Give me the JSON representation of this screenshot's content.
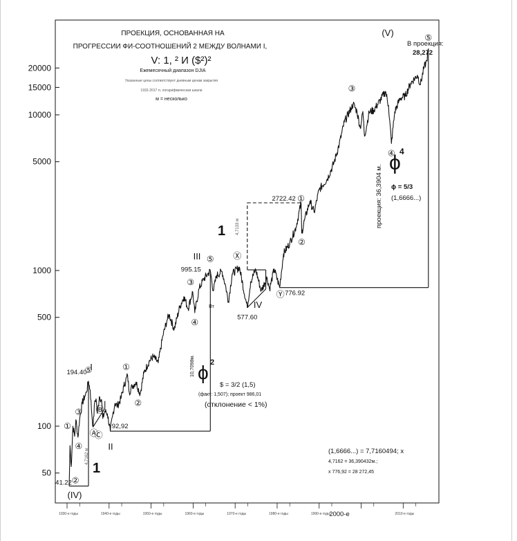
{
  "chart_data": {
    "type": "line",
    "scale": "log",
    "title_lines": [
      "ПРОЕКЦИЯ, ОСНОВАННАЯ НА",
      "ПРОГРЕССИИ ФИ-СООТНОШЕНИЙ 2 МЕЖДУ ВОЛНАМИ I,"
    ],
    "title_formula": "V: 1, ² И ($²)²",
    "subtitle": "Ежемесячный диапазон DJIA",
    "note_prices": "Указанные цены соответствуют дневным ценам закрытия",
    "note_scale": "1932-2017 гг, логарифмическая шкала",
    "note_m": "м = несколько",
    "ylim": [
      40,
      30000
    ],
    "y_ticks": [
      {
        "value": 50,
        "label": "50"
      },
      {
        "value": 100,
        "label": "100"
      },
      {
        "value": 500,
        "label": "500"
      },
      {
        "value": 1000,
        "label": "1000"
      },
      {
        "value": 5000,
        "label": "5000"
      },
      {
        "value": 10000,
        "label": "10000"
      },
      {
        "value": 15000,
        "label": "15000"
      },
      {
        "value": 20000,
        "label": "20000"
      }
    ],
    "x_ticks": [
      {
        "year": 1932,
        "label": "1930-е годы"
      },
      {
        "year": 1942,
        "label": "1940-е годы"
      },
      {
        "year": 1952,
        "label": "1950-е годы"
      },
      {
        "year": 1962,
        "label": "1960-е годы"
      },
      {
        "year": 1972,
        "label": "1970-е годы"
      },
      {
        "year": 1982,
        "label": "1980-е годы"
      },
      {
        "year": 1992,
        "label": "1990-е годы"
      },
      {
        "year": 2002,
        "label": "2000-е"
      },
      {
        "year": 2012,
        "label": "2010-е годы"
      }
    ],
    "series": [
      {
        "name": "DJIA",
        "points": [
          [
            1932.5,
            41.22
          ],
          [
            1932.7,
            75
          ],
          [
            1933.0,
            55
          ],
          [
            1933.4,
            100
          ],
          [
            1933.8,
            86
          ],
          [
            1934.1,
            110
          ],
          [
            1934.6,
            85
          ],
          [
            1935.0,
            112
          ],
          [
            1935.6,
            140
          ],
          [
            1936.2,
            155
          ],
          [
            1936.6,
            165
          ],
          [
            1937.1,
            194.4
          ],
          [
            1937.5,
            170
          ],
          [
            1937.9,
            118
          ],
          [
            1938.2,
            99
          ],
          [
            1938.6,
            145
          ],
          [
            1938.9,
            150
          ],
          [
            1939.2,
            121
          ],
          [
            1939.7,
            155
          ],
          [
            1940.2,
            148
          ],
          [
            1940.5,
            112
          ],
          [
            1941.0,
            125
          ],
          [
            1941.6,
            120
          ],
          [
            1942.3,
            92.92
          ],
          [
            1942.8,
            115
          ],
          [
            1943.4,
            140
          ],
          [
            1944.0,
            135
          ],
          [
            1944.8,
            150
          ],
          [
            1945.5,
            180
          ],
          [
            1946.4,
            212
          ],
          [
            1946.8,
            165
          ],
          [
            1947.5,
            180
          ],
          [
            1948.4,
            192
          ],
          [
            1949.4,
            161
          ],
          [
            1950.3,
            220
          ],
          [
            1951.5,
            260
          ],
          [
            1952.5,
            280
          ],
          [
            1953.7,
            255
          ],
          [
            1954.8,
            380
          ],
          [
            1955.8,
            480
          ],
          [
            1956.3,
            520
          ],
          [
            1957.5,
            420
          ],
          [
            1958.8,
            580
          ],
          [
            1959.8,
            680
          ],
          [
            1960.8,
            570
          ],
          [
            1961.9,
            730
          ],
          [
            1962.4,
            535
          ],
          [
            1963.4,
            760
          ],
          [
            1964.5,
            880
          ],
          [
            1965.5,
            950
          ],
          [
            1966.1,
            995.15
          ],
          [
            1966.8,
            740
          ],
          [
            1967.6,
            930
          ],
          [
            1968.9,
            985
          ],
          [
            1969.8,
            780
          ],
          [
            1970.4,
            631
          ],
          [
            1971.3,
            950
          ],
          [
            1973.0,
            1051
          ],
          [
            1974.9,
            577.6
          ],
          [
            1975.7,
            850
          ],
          [
            1976.9,
            1014
          ],
          [
            1978.2,
            740
          ],
          [
            1979.6,
            900
          ],
          [
            1980.2,
            760
          ],
          [
            1981.3,
            1024
          ],
          [
            1982.6,
            776.92
          ],
          [
            1983.5,
            1280
          ],
          [
            1985.0,
            1500
          ],
          [
            1986.5,
            1900
          ],
          [
            1987.7,
            2722.42
          ],
          [
            1987.85,
            1738
          ],
          [
            1988.5,
            2100
          ],
          [
            1989.8,
            2790
          ],
          [
            1990.8,
            2365
          ],
          [
            1992.0,
            3300
          ],
          [
            1994.0,
            3900
          ],
          [
            1995.5,
            4900
          ],
          [
            1996.8,
            6500
          ],
          [
            1998.0,
            9000
          ],
          [
            1999.6,
            11000
          ],
          [
            2000.1,
            11750
          ],
          [
            2001.0,
            10500
          ],
          [
            2001.8,
            8200
          ],
          [
            2002.4,
            10500
          ],
          [
            2002.8,
            7286
          ],
          [
            2003.9,
            10400
          ],
          [
            2005.0,
            10700
          ],
          [
            2006.6,
            12500
          ],
          [
            2007.8,
            14165
          ],
          [
            2008.5,
            11500
          ],
          [
            2009.2,
            6547
          ],
          [
            2010.0,
            10500
          ],
          [
            2011.3,
            12800
          ],
          [
            2012.5,
            13200
          ],
          [
            2013.8,
            16000
          ],
          [
            2015.4,
            18000
          ],
          [
            2016.1,
            15660
          ],
          [
            2016.9,
            19800
          ],
          [
            2017.6,
            22300
          ],
          [
            2018.0,
            26600
          ]
        ]
      }
    ],
    "price_labels": [
      {
        "value": "194.40",
        "year": 1937.1,
        "price": 194.4
      },
      {
        "value": "995.15",
        "year": 1966.1,
        "price": 995.15
      },
      {
        "value": "2722.42",
        "year": 1987.7,
        "price": 2722.42
      },
      {
        "value": "577.60",
        "year": 1974.9,
        "price": 577.6
      },
      {
        "value": "776.92",
        "year": 1982.6,
        "price": 776.92
      },
      {
        "value": "92,92",
        "year": 1942.3,
        "price": 92.92
      },
      {
        "value": "41.22",
        "year": 1932.5,
        "price": 41.22
      }
    ],
    "wave_labels": {
      "primary_IV": "(IV)",
      "primary_V": "(V)",
      "I": "I",
      "II": "II",
      "III": "III",
      "IV": "IV",
      "bt": "Вт",
      "circled": [
        "①",
        "②",
        "③",
        "④",
        "⑤",
        "Ⓐ",
        "Ⓑ",
        "Ⓒ",
        "Ⓧ",
        "Ⓨ"
      ]
    },
    "projection": {
      "label_top_1": "В проекция:",
      "label_top_2": "28,272",
      "vertical_note": "проекция: 36,3904 м.",
      "phi4_symbol": "ϕ",
      "phi4_exp": "4",
      "phi_ratio": "ϕ = 5/3",
      "phi_value": "(1,6666...)",
      "calc_1": "(1,6666...) = 7,7160494; x",
      "calc_2": "4,7162 = 36,390432м.;",
      "calc_3": "x 776,92 = 28 272,45"
    },
    "wave_III_note": {
      "vertical_note": "10,7098м.",
      "phi2_symbol": "ϕ",
      "phi2_exp": "2",
      "ratio": "$ = 3/2 (1,5)",
      "fact": "(факт: 1,507); проект 986,01",
      "deviation": "(отклонение < 1%)"
    },
    "wave_I_note": {
      "vertical_note": "4,7162 м",
      "one_label": "1"
    },
    "wave_dashed_note": {
      "vertical_note": "4,7133 м",
      "one_label": "1"
    },
    "bottom_x_label": "2000-е"
  }
}
